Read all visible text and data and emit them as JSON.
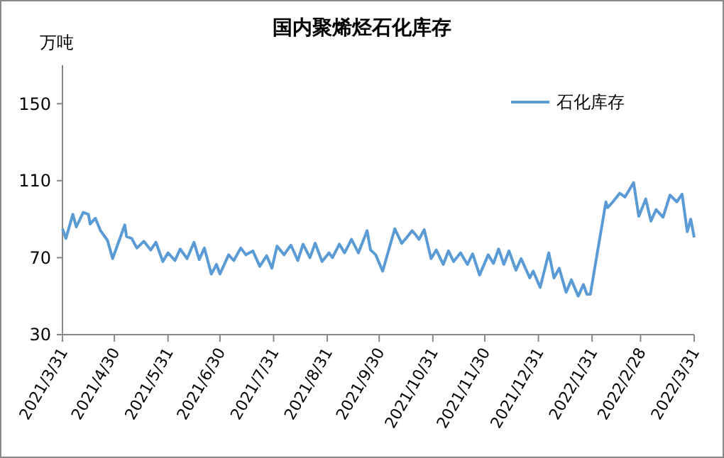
{
  "chart_data": {
    "type": "line",
    "title": "国内聚烯烃石化库存",
    "ylabel": "万吨",
    "legend": "top right",
    "grid": false,
    "xlim": [
      "2021-03-31",
      "2022-03-31"
    ],
    "xticks": [
      {
        "value": "2021-03-31",
        "label": "2021/3/31"
      },
      {
        "value": "2021-04-30",
        "label": "2021/4/30"
      },
      {
        "value": "2021-05-31",
        "label": "2021/5/31"
      },
      {
        "value": "2021-06-30",
        "label": "2021/6/30"
      },
      {
        "value": "2021-07-31",
        "label": "2021/7/31"
      },
      {
        "value": "2021-08-31",
        "label": "2021/8/31"
      },
      {
        "value": "2021-09-30",
        "label": "2021/9/30"
      },
      {
        "value": "2021-10-31",
        "label": "2021/10/31"
      },
      {
        "value": "2021-11-30",
        "label": "2021/11/30"
      },
      {
        "value": "2021-12-31",
        "label": "2021/12/31"
      },
      {
        "value": "2022-01-31",
        "label": "2022/1/31"
      },
      {
        "value": "2022-02-28",
        "label": "2022/2/28"
      },
      {
        "value": "2022-03-31",
        "label": "2022/3/31"
      }
    ],
    "ylim": [
      30,
      170
    ],
    "yticks": [
      30,
      70,
      110,
      150
    ],
    "x": [
      "2021-03-31",
      "2021-04-02",
      "2021-04-06",
      "2021-04-08",
      "2021-04-12",
      "2021-04-15",
      "2021-04-16",
      "2021-04-19",
      "2021-04-22",
      "2021-04-26",
      "2021-04-29",
      "2021-05-06",
      "2021-05-07",
      "2021-05-10",
      "2021-05-13",
      "2021-05-17",
      "2021-05-21",
      "2021-05-24",
      "2021-05-28",
      "2021-05-31",
      "2021-06-04",
      "2021-06-07",
      "2021-06-11",
      "2021-06-15",
      "2021-06-18",
      "2021-06-21",
      "2021-06-25",
      "2021-06-28",
      "2021-06-30",
      "2021-07-05",
      "2021-07-08",
      "2021-07-12",
      "2021-07-15",
      "2021-07-19",
      "2021-07-23",
      "2021-07-27",
      "2021-07-30",
      "2021-08-02",
      "2021-08-06",
      "2021-08-10",
      "2021-08-14",
      "2021-08-17",
      "2021-08-21",
      "2021-08-24",
      "2021-08-28",
      "2021-09-01",
      "2021-09-03",
      "2021-09-07",
      "2021-09-10",
      "2021-09-14",
      "2021-09-18",
      "2021-09-23",
      "2021-09-25",
      "2021-09-28",
      "2021-10-02",
      "2021-10-09",
      "2021-10-13",
      "2021-10-15",
      "2021-10-19",
      "2021-10-21",
      "2021-10-23",
      "2021-10-26",
      "2021-10-30",
      "2021-11-02",
      "2021-11-06",
      "2021-11-09",
      "2021-11-12",
      "2021-11-16",
      "2021-11-20",
      "2021-11-23",
      "2021-11-27",
      "2021-12-02",
      "2021-12-05",
      "2021-12-08",
      "2021-12-11",
      "2021-12-14",
      "2021-12-18",
      "2021-12-21",
      "2021-12-26",
      "2021-12-28",
      "2022-01-01",
      "2022-01-06",
      "2022-01-09",
      "2022-01-12",
      "2022-01-16",
      "2022-01-19",
      "2022-01-23",
      "2022-01-26",
      "2022-01-28",
      "2022-01-30",
      "2022-02-08",
      "2022-02-09",
      "2022-02-12",
      "2022-02-16",
      "2022-02-19",
      "2022-02-24",
      "2022-02-27",
      "2022-03-03",
      "2022-03-06",
      "2022-03-09",
      "2022-03-13",
      "2022-03-17",
      "2022-03-21",
      "2022-03-24",
      "2022-03-27",
      "2022-03-29",
      "2022-03-31"
    ],
    "series": [
      {
        "name": "石化库存",
        "color": "#5b9bd5",
        "values": [
          85,
          80,
          92.5,
          86,
          93.5,
          92.5,
          87.5,
          90.5,
          84,
          79,
          69.5,
          87,
          81,
          80,
          75,
          78.5,
          74,
          78,
          68,
          72.5,
          68.5,
          74.5,
          69.5,
          78,
          69,
          75,
          61.5,
          66.5,
          61.5,
          71.5,
          68.5,
          75,
          71.5,
          73.5,
          65.5,
          71,
          64.5,
          76,
          71.5,
          76.5,
          68.5,
          77,
          70,
          77.5,
          68,
          72.5,
          70,
          77,
          72.5,
          79.5,
          72.5,
          84,
          74,
          71.5,
          63,
          85,
          77.5,
          79.5,
          84,
          82,
          79.5,
          84.5,
          69.5,
          74,
          66.5,
          73.5,
          68,
          72.5,
          66.5,
          72,
          61,
          71.5,
          67,
          74.5,
          66.5,
          73.5,
          63.5,
          69.5,
          59.5,
          63,
          54.5,
          72.5,
          59.5,
          64.5,
          52,
          58.5,
          50,
          56,
          51,
          51,
          99,
          96,
          99,
          103.5,
          101.5,
          109,
          91.5,
          100.5,
          89,
          95,
          91,
          102.5,
          99,
          103,
          83.5,
          90,
          80.5
        ]
      }
    ]
  }
}
